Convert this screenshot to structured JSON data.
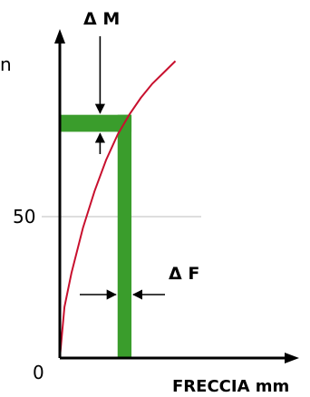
{
  "chart_data": {
    "type": "line",
    "title": "",
    "xlabel": "FRECCIA mm",
    "ylabel": "",
    "ylabel_fragment": "n",
    "y_tick_labels": [
      "0",
      "50"
    ],
    "y_ticks": [
      0,
      50
    ],
    "x_ticks": [],
    "xlim": [
      0,
      100
    ],
    "ylim": [
      0,
      100
    ],
    "grid": false,
    "series": [
      {
        "x": [
          0,
          2,
          5,
          10,
          15,
          20,
          25,
          30,
          35,
          40,
          45,
          50
        ],
        "y": [
          0,
          18,
          30,
          46,
          59,
          70,
          79,
          86,
          92,
          97,
          101,
          105
        ],
        "color": "#c8102e"
      }
    ],
    "reference_line": {
      "y": 50,
      "label": "50",
      "color": "#bdbdbd"
    },
    "operating_point": {
      "x": 31,
      "y": 86
    },
    "annotations": {
      "delta_m": {
        "label": "Δ M",
        "band_y": [
          80,
          86
        ],
        "color": "#3a9d2c"
      },
      "delta_f": {
        "label": "Δ F",
        "band_x": [
          25,
          31
        ],
        "color": "#3a9d2c"
      }
    },
    "colors": {
      "axis": "#000000",
      "band": "#3a9d2c",
      "curve": "#c8102e",
      "reference": "#bdbdbd"
    }
  }
}
